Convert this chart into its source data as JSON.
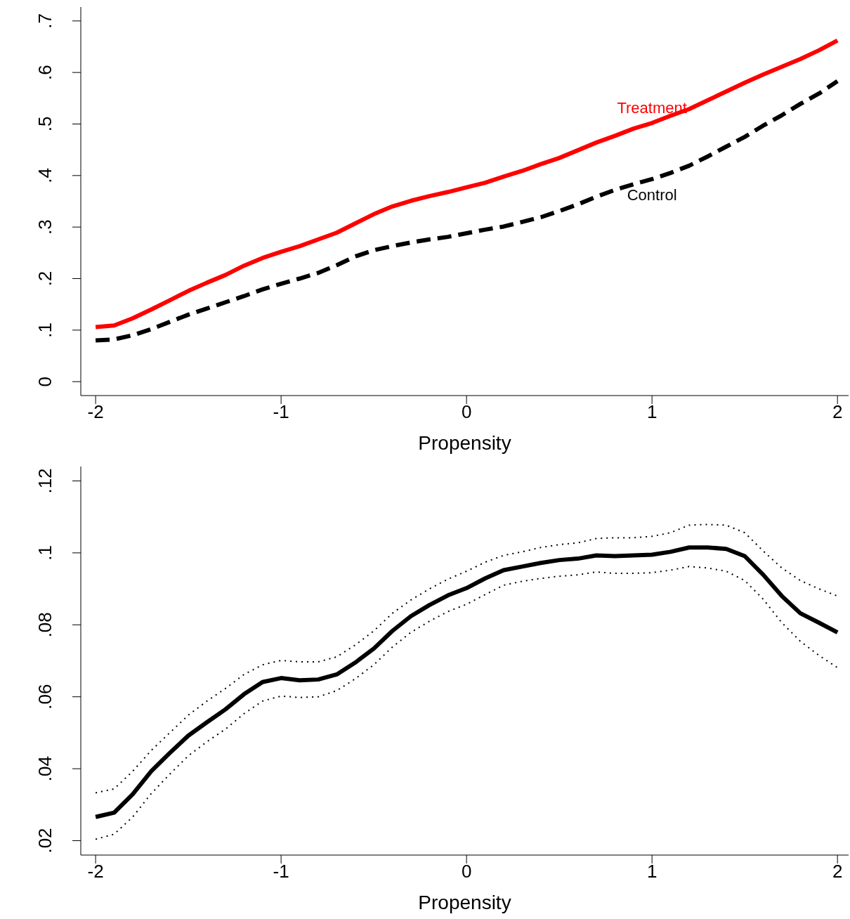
{
  "chart_data": [
    {
      "type": "line",
      "xlabel": "Propensity",
      "x": [
        -2,
        -1.9,
        -1.8,
        -1.7,
        -1.6,
        -1.5,
        -1.4,
        -1.3,
        -1.2,
        -1.1,
        -1,
        -0.9,
        -0.8,
        -0.7,
        -0.6,
        -0.5,
        -0.4,
        -0.3,
        -0.2,
        -0.1,
        0,
        0.1,
        0.2,
        0.3,
        0.4,
        0.5,
        0.6,
        0.7,
        0.8,
        0.9,
        1,
        1.1,
        1.2,
        1.3,
        1.4,
        1.5,
        1.6,
        1.7,
        1.8,
        1.9,
        2
      ],
      "series": [
        {
          "name": "Treatment",
          "color": "#ff0000",
          "line_style": "solid",
          "values": [
            0.106,
            0.109,
            0.123,
            0.14,
            0.158,
            0.176,
            0.192,
            0.207,
            0.225,
            0.24,
            0.252,
            0.263,
            0.276,
            0.289,
            0.307,
            0.325,
            0.34,
            0.351,
            0.36,
            0.368,
            0.377,
            0.386,
            0.398,
            0.409,
            0.422,
            0.434,
            0.449,
            0.464,
            0.477,
            0.491,
            0.502,
            0.516,
            0.529,
            0.546,
            0.563,
            0.58,
            0.596,
            0.611,
            0.626,
            0.643,
            0.662
          ]
        },
        {
          "name": "Control",
          "color": "#000000",
          "line_style": "dashed",
          "values": [
            0.08,
            0.082,
            0.09,
            0.102,
            0.116,
            0.13,
            0.142,
            0.154,
            0.166,
            0.179,
            0.19,
            0.2,
            0.211,
            0.226,
            0.243,
            0.255,
            0.263,
            0.27,
            0.276,
            0.281,
            0.288,
            0.295,
            0.301,
            0.31,
            0.319,
            0.331,
            0.344,
            0.359,
            0.372,
            0.383,
            0.393,
            0.405,
            0.419,
            0.437,
            0.456,
            0.475,
            0.497,
            0.517,
            0.539,
            0.559,
            0.583
          ]
        }
      ],
      "xlim": [
        -2.08,
        2.06
      ],
      "xticks": [
        -2,
        -1,
        0,
        1,
        2
      ],
      "ylim": [
        -0.027,
        0.727
      ],
      "yticks": [
        0,
        {
          "value": 0.1,
          "label": ".1"
        },
        {
          "value": 0.2,
          "label": ".2"
        },
        {
          "value": 0.3,
          "label": ".3"
        },
        {
          "value": 0.4,
          "label": ".4"
        },
        {
          "value": 0.5,
          "label": ".5"
        },
        {
          "value": 0.6,
          "label": ".6"
        },
        {
          "value": 0.7,
          "label": ".7"
        }
      ]
    },
    {
      "type": "line",
      "xlabel": "Propensity",
      "x": [
        -2,
        -1.9,
        -1.8,
        -1.7,
        -1.6,
        -1.5,
        -1.4,
        -1.3,
        -1.2,
        -1.1,
        -1,
        -0.9,
        -0.8,
        -0.7,
        -0.6,
        -0.5,
        -0.4,
        -0.3,
        -0.2,
        -0.1,
        0,
        0.1,
        0.2,
        0.3,
        0.4,
        0.5,
        0.6,
        0.7,
        0.8,
        0.9,
        1,
        1.1,
        1.2,
        1.3,
        1.4,
        1.5,
        1.6,
        1.7,
        1.8,
        1.9,
        2
      ],
      "series": [
        {
          "color": "#000000",
          "line_style": "solid",
          "values": [
            0.0266,
            0.0278,
            0.0329,
            0.0393,
            0.0444,
            0.0492,
            0.0529,
            0.0565,
            0.0607,
            0.0641,
            0.0652,
            0.0646,
            0.0648,
            0.0662,
            0.0695,
            0.0734,
            0.0783,
            0.0824,
            0.0855,
            0.0882,
            0.0902,
            0.0929,
            0.0952,
            0.0962,
            0.0972,
            0.098,
            0.0984,
            0.0993,
            0.0991,
            0.0993,
            0.0995,
            0.1003,
            0.1015,
            0.1015,
            0.1011,
            0.0991,
            0.0939,
            0.088,
            0.0832,
            0.0806,
            0.0779
          ]
        },
        {
          "color": "#000000",
          "line_style": "dotted",
          "values": [
            0.0333,
            0.0344,
            0.0393,
            0.0451,
            0.05,
            0.0549,
            0.0588,
            0.0623,
            0.0662,
            0.0689,
            0.0701,
            0.0697,
            0.0697,
            0.0711,
            0.0744,
            0.0783,
            0.0832,
            0.0869,
            0.09,
            0.0927,
            0.0949,
            0.0974,
            0.0993,
            0.1003,
            0.1015,
            0.1023,
            0.1028,
            0.104,
            0.1042,
            0.1042,
            0.1046,
            0.1056,
            0.1077,
            0.1079,
            0.1077,
            0.1056,
            0.1005,
            0.0958,
            0.0923,
            0.09,
            0.088
          ]
        },
        {
          "color": "#000000",
          "line_style": "dotted",
          "values": [
            0.0204,
            0.0218,
            0.0266,
            0.0331,
            0.0385,
            0.0436,
            0.0475,
            0.051,
            0.0553,
            0.0588,
            0.0602,
            0.0598,
            0.06,
            0.0617,
            0.065,
            0.0689,
            0.0738,
            0.0779,
            0.081,
            0.0837,
            0.0857,
            0.0884,
            0.091,
            0.0921,
            0.0929,
            0.0935,
            0.0939,
            0.0947,
            0.0943,
            0.0943,
            0.0945,
            0.0952,
            0.0962,
            0.0958,
            0.0949,
            0.0923,
            0.0871,
            0.0806,
            0.0754,
            0.0715,
            0.0681
          ]
        }
      ],
      "xlim": [
        -2.08,
        2.06
      ],
      "xticks": [
        -2,
        -1,
        0,
        1,
        2
      ],
      "ylim": [
        0.016,
        0.124
      ],
      "yticks": [
        {
          "value": 0.02,
          "label": ".02"
        },
        {
          "value": 0.04,
          "label": ".04"
        },
        {
          "value": 0.06,
          "label": ".06"
        },
        {
          "value": 0.08,
          "label": ".08"
        },
        {
          "value": 0.1,
          "label": ".1"
        },
        {
          "value": 0.12,
          "label": ".12"
        }
      ]
    }
  ]
}
